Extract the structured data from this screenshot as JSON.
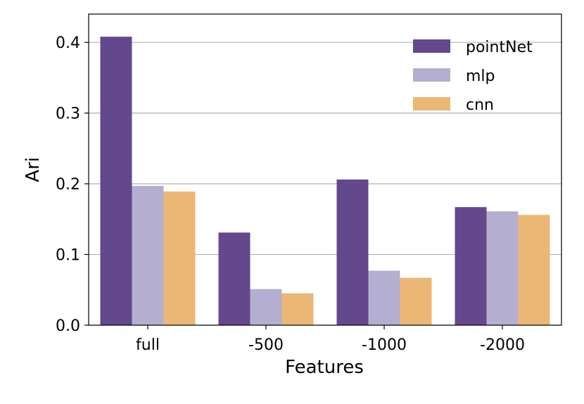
{
  "chart_data": {
    "type": "bar",
    "title": "",
    "xlabel": "Features",
    "ylabel": "Ari",
    "categories": [
      "full",
      "-500",
      "-1000",
      "-2000"
    ],
    "series": [
      {
        "name": "pointNet",
        "color": "#63488d",
        "values": [
          0.408,
          0.131,
          0.206,
          0.167
        ]
      },
      {
        "name": "mlp",
        "color": "#b4afd0",
        "values": [
          0.197,
          0.051,
          0.077,
          0.161
        ]
      },
      {
        "name": "cnn",
        "color": "#ecb775",
        "values": [
          0.189,
          0.045,
          0.067,
          0.156
        ]
      }
    ],
    "ylim": [
      0,
      0.44
    ],
    "yticks": [
      "0.0",
      "0.1",
      "0.2",
      "0.3",
      "0.4"
    ],
    "grid": "horizontal",
    "legend_position": "top-right"
  }
}
